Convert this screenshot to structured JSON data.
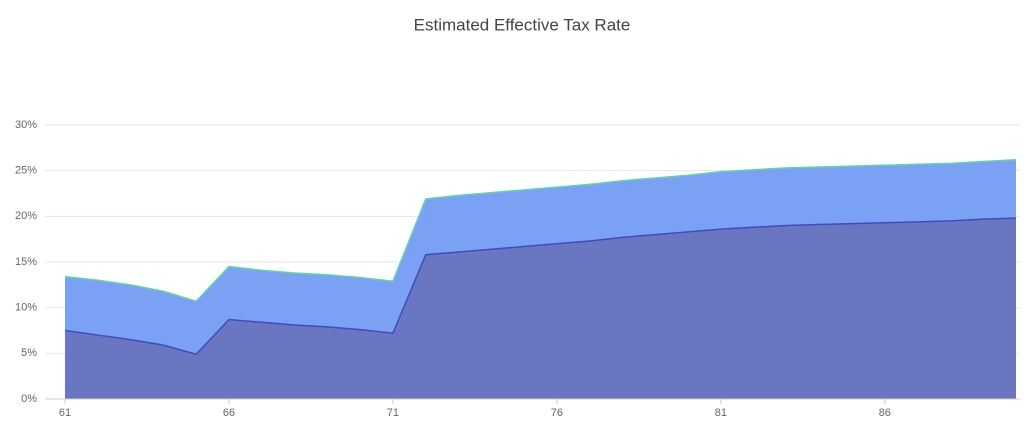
{
  "chart_data": {
    "type": "area",
    "title": "Estimated Effective Tax Rate",
    "x": [
      61,
      62,
      63,
      64,
      65,
      66,
      67,
      68,
      69,
      70,
      71,
      72,
      73,
      74,
      75,
      76,
      77,
      78,
      79,
      80,
      81,
      82,
      83,
      84,
      85,
      86,
      87,
      88,
      89,
      90
    ],
    "series": [
      {
        "color": "#7ba1f5",
        "line_color": "#6fd38f",
        "values": [
          13.4,
          13.0,
          12.5,
          11.8,
          10.7,
          14.5,
          14.1,
          13.8,
          13.6,
          13.3,
          12.9,
          21.9,
          22.3,
          22.6,
          22.9,
          23.2,
          23.5,
          23.9,
          24.2,
          24.5,
          24.9,
          25.1,
          25.3,
          25.4,
          25.5,
          25.6,
          25.7,
          25.8,
          26.0,
          26.2
        ]
      },
      {
        "color": "#6a76c2",
        "line_color": "#3a4ec0",
        "values": [
          7.5,
          7.0,
          6.5,
          5.9,
          4.9,
          8.7,
          8.4,
          8.1,
          7.9,
          7.6,
          7.2,
          15.8,
          16.1,
          16.4,
          16.7,
          17.0,
          17.3,
          17.7,
          18.0,
          18.3,
          18.6,
          18.8,
          19.0,
          19.1,
          19.2,
          19.3,
          19.4,
          19.5,
          19.7,
          19.8
        ]
      }
    ],
    "xlim": [
      61,
      90
    ],
    "xticks": [
      61,
      66,
      71,
      76,
      81,
      86
    ],
    "ylim": [
      0,
      30
    ],
    "yticks": [
      {
        "value": 0,
        "label": "0%"
      },
      {
        "value": 5,
        "label": "5%"
      },
      {
        "value": 10,
        "label": "10%"
      },
      {
        "value": 15,
        "label": "15%"
      },
      {
        "value": 20,
        "label": "20%"
      },
      {
        "value": 25,
        "label": "25%"
      },
      {
        "value": 30,
        "label": "30%"
      }
    ],
    "grid": true
  }
}
